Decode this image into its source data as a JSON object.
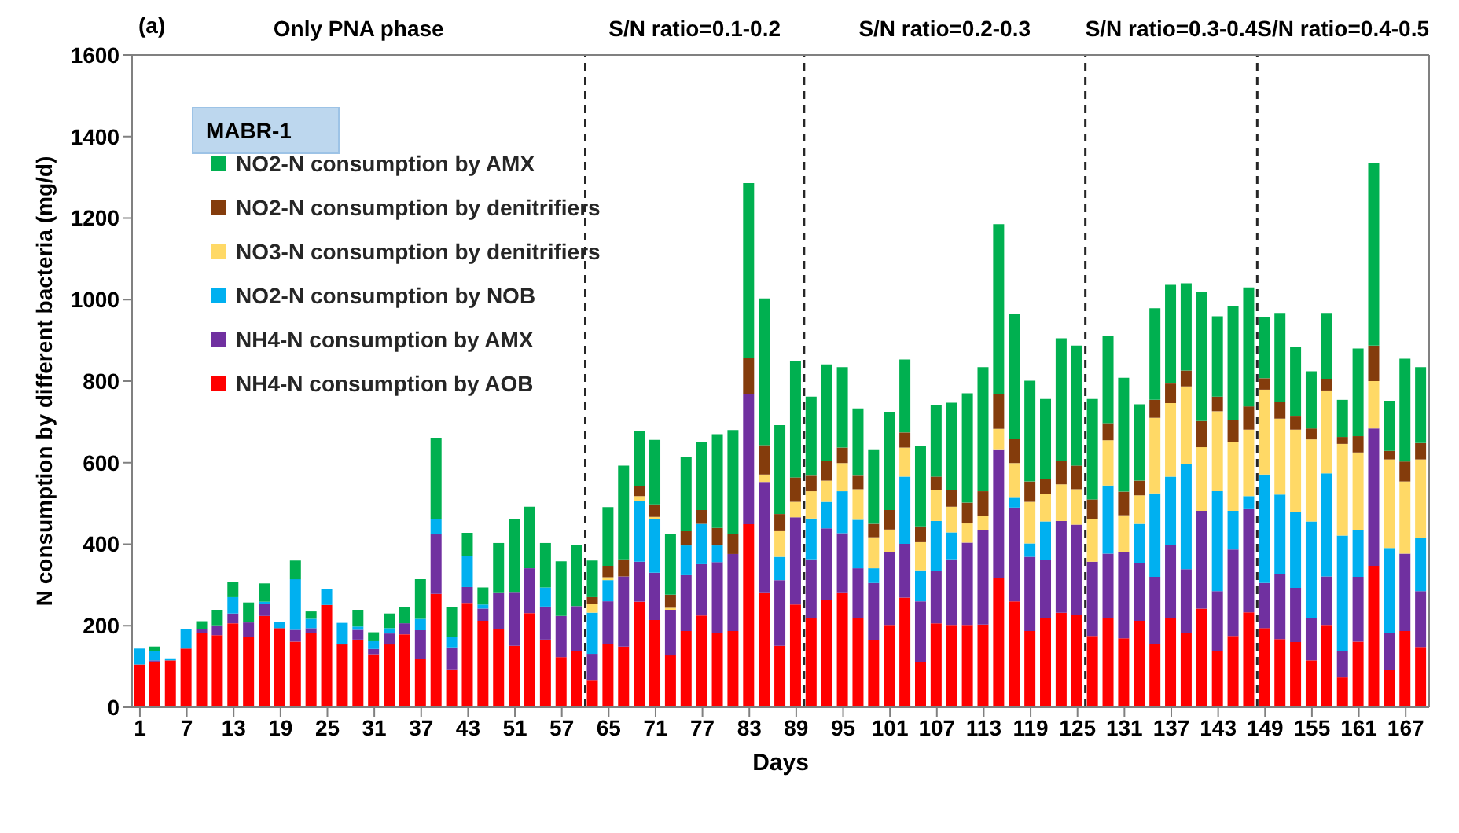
{
  "chart_data": {
    "type": "bar",
    "stacked": true,
    "xlabel": "Days",
    "ylabel": "N consumption by different bacteria (mg/d)",
    "categories": [
      "1",
      null,
      null,
      "7",
      null,
      null,
      "13",
      null,
      null,
      "19",
      null,
      null,
      "25",
      null,
      null,
      "31",
      null,
      null,
      "37",
      null,
      null,
      "43",
      null,
      null,
      "51",
      null,
      null,
      "57",
      null,
      null,
      "65",
      null,
      null,
      "71",
      null,
      null,
      "77",
      null,
      null,
      "83",
      null,
      null,
      "89",
      null,
      null,
      "95",
      null,
      null,
      "101",
      null,
      null,
      "107",
      null,
      null,
      "113",
      null,
      null,
      "119",
      null,
      null,
      "125",
      null,
      null,
      "131",
      null,
      null,
      "137",
      null,
      null,
      "143",
      null,
      null,
      "149",
      null,
      null,
      "155",
      null,
      null,
      "161",
      null,
      null,
      "167",
      null
    ],
    "ylim": [
      0,
      1600
    ],
    "yticks": [
      0,
      200,
      400,
      600,
      800,
      1000,
      1200,
      1400,
      1600
    ],
    "legend": "top left",
    "annotations": [
      "(a)",
      "MABR-1",
      "Only PNA phase",
      "S/N ratio=0.1-0.2",
      "S/N ratio=0.2-0.3",
      "S/N ratio=0.3-0.4",
      "S/N ratio=0.4-0.5"
    ],
    "series": [
      {
        "name": "NH4-N consumption by AOB",
        "color": "#ff0000",
        "values": [
          105,
          112,
          115,
          144,
          183,
          177,
          206,
          172,
          224,
          194,
          161,
          183,
          251,
          154,
          166,
          130,
          154,
          179,
          118,
          278,
          93,
          256,
          212,
          191,
          151,
          231,
          166,
          123,
          138,
          67,
          155,
          149,
          259,
          214,
          127,
          187,
          225,
          183,
          187,
          449,
          282,
          151,
          252,
          218,
          264,
          282,
          218,
          166,
          202,
          269,
          112,
          206,
          202,
          202,
          203,
          318,
          260,
          187,
          218,
          232,
          226,
          175,
          218,
          169,
          212,
          154,
          218,
          182,
          242,
          139,
          175,
          233,
          194,
          167,
          160,
          115,
          202,
          73,
          161,
          347,
          92,
          187,
          148
        ]
      },
      {
        "name": "NH4-N consumption by AMX",
        "color": "#7030a0",
        "values": [
          0,
          3,
          0,
          0,
          8,
          24,
          24,
          36,
          29,
          0,
          29,
          11,
          0,
          0,
          24,
          13,
          27,
          27,
          71,
          146,
          54,
          39,
          30,
          91,
          132,
          110,
          81,
          101,
          110,
          64,
          105,
          172,
          98,
          116,
          112,
          137,
          126,
          173,
          189,
          320,
          271,
          161,
          214,
          145,
          175,
          145,
          123,
          139,
          178,
          132,
          148,
          129,
          161,
          202,
          232,
          315,
          230,
          182,
          143,
          225,
          222,
          182,
          159,
          212,
          141,
          166,
          181,
          157,
          240,
          146,
          212,
          253,
          111,
          160,
          133,
          103,
          119,
          66,
          159,
          337,
          90,
          190,
          137
        ]
      },
      {
        "name": "NO2-N consumption by NOB",
        "color": "#00b0f0",
        "values": [
          39,
          22,
          5,
          47,
          0,
          0,
          40,
          0,
          6,
          16,
          124,
          23,
          40,
          53,
          8,
          19,
          13,
          0,
          28,
          37,
          25,
          76,
          10,
          0,
          0,
          0,
          47,
          0,
          0,
          101,
          52,
          0,
          149,
          132,
          0,
          73,
          99,
          41,
          0,
          0,
          0,
          57,
          0,
          100,
          65,
          103,
          119,
          36,
          0,
          165,
          76,
          122,
          66,
          0,
          0,
          0,
          24,
          33,
          95,
          0,
          0,
          0,
          167,
          0,
          97,
          205,
          167,
          258,
          0,
          245,
          95,
          32,
          266,
          195,
          187,
          238,
          253,
          282,
          115,
          0,
          209,
          0,
          131
        ]
      },
      {
        "name": "NO3-N consumption by denitrifiers",
        "color": "#ffd966",
        "values": [
          0,
          0,
          0,
          0,
          0,
          0,
          0,
          0,
          0,
          0,
          0,
          0,
          0,
          0,
          0,
          0,
          0,
          0,
          0,
          0,
          0,
          0,
          0,
          0,
          0,
          0,
          0,
          0,
          0,
          22,
          7,
          0,
          12,
          5,
          5,
          0,
          0,
          0,
          0,
          0,
          18,
          63,
          38,
          67,
          52,
          69,
          75,
          76,
          56,
          71,
          69,
          75,
          63,
          47,
          34,
          50,
          85,
          102,
          68,
          90,
          87,
          105,
          111,
          90,
          70,
          185,
          180,
          190,
          156,
          196,
          168,
          163,
          208,
          186,
          201,
          201,
          203,
          225,
          190,
          116,
          217,
          177,
          192
        ]
      },
      {
        "name": "NO2-N consumption by denitrifiers",
        "color": "#843c0c",
        "values": [
          0,
          0,
          0,
          0,
          0,
          0,
          0,
          0,
          0,
          0,
          0,
          0,
          0,
          0,
          0,
          0,
          0,
          0,
          0,
          0,
          0,
          0,
          0,
          0,
          0,
          0,
          0,
          0,
          0,
          16,
          28,
          42,
          25,
          31,
          32,
          35,
          34,
          43,
          50,
          87,
          72,
          42,
          60,
          38,
          49,
          38,
          33,
          33,
          48,
          37,
          39,
          34,
          40,
          51,
          61,
          85,
          60,
          50,
          36,
          58,
          58,
          48,
          42,
          58,
          36,
          44,
          48,
          39,
          64,
          36,
          54,
          57,
          28,
          42,
          34,
          27,
          29,
          17,
          40,
          87,
          21,
          49,
          40
        ]
      },
      {
        "name": "NO2-N consumption by AMX",
        "color": "#00b050",
        "values": [
          0,
          12,
          0,
          0,
          20,
          38,
          38,
          49,
          45,
          0,
          46,
          18,
          0,
          0,
          41,
          22,
          36,
          39,
          97,
          200,
          73,
          57,
          42,
          121,
          178,
          151,
          109,
          134,
          149,
          90,
          144,
          230,
          134,
          158,
          150,
          183,
          167,
          230,
          254,
          430,
          360,
          218,
          286,
          194,
          236,
          197,
          165,
          183,
          241,
          179,
          196,
          175,
          215,
          268,
          304,
          417,
          306,
          247,
          196,
          300,
          294,
          246,
          215,
          279,
          187,
          225,
          242,
          214,
          318,
          197,
          280,
          292,
          150,
          217,
          170,
          140,
          161,
          91,
          215,
          447,
          123,
          252,
          186
        ]
      }
    ]
  }
}
